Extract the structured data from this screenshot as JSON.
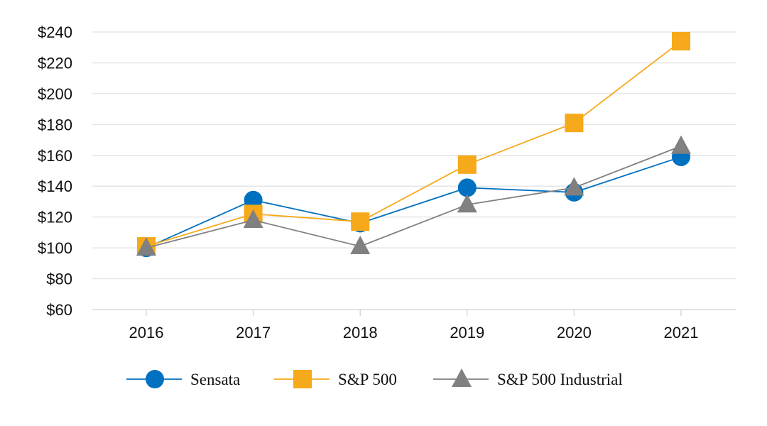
{
  "chart_data": {
    "type": "line",
    "title": "",
    "xlabel": "",
    "ylabel": "",
    "categories": [
      "2016",
      "2017",
      "2018",
      "2019",
      "2020",
      "2021"
    ],
    "ylim": [
      60,
      240
    ],
    "yticks": [
      60,
      80,
      100,
      120,
      140,
      160,
      180,
      200,
      220,
      240
    ],
    "ytick_labels": [
      "$60",
      "$80",
      "$100",
      "$120",
      "$140",
      "$160",
      "$180",
      "$200",
      "$220",
      "$240"
    ],
    "grid": true,
    "legend_position": "bottom",
    "series": [
      {
        "name": "Sensata",
        "values": [
          100,
          131,
          116,
          139,
          136,
          159
        ],
        "color": "#0070C0",
        "marker": "circle"
      },
      {
        "name": "S&P 500",
        "values": [
          101,
          122,
          117,
          154,
          181,
          234
        ],
        "color": "#F6A91A",
        "marker": "square"
      },
      {
        "name": "S&P 500 Industrial",
        "values": [
          100,
          118,
          101,
          128,
          139,
          166
        ],
        "color": "#808080",
        "marker": "triangle"
      }
    ]
  }
}
